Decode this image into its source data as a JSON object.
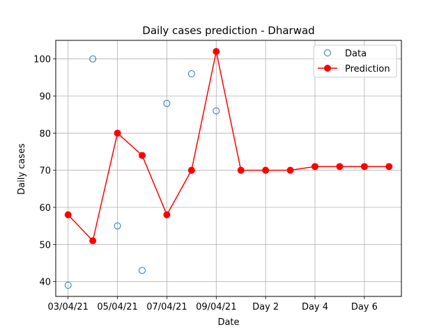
{
  "chart_data": {
    "type": "line",
    "title": "Daily cases prediction - Dharwad",
    "xlabel": "Date",
    "ylabel": "Daily cases",
    "x_index_range": [
      -0.5,
      13.5
    ],
    "ylim": [
      36,
      105
    ],
    "grid": true,
    "legend_placement": "top-right",
    "x_ticks": [
      {
        "index": 0,
        "label": "03/04/21"
      },
      {
        "index": 2,
        "label": "05/04/21"
      },
      {
        "index": 4,
        "label": "07/04/21"
      },
      {
        "index": 6,
        "label": "09/04/21"
      },
      {
        "index": 8,
        "label": "Day 2"
      },
      {
        "index": 10,
        "label": "Day 4"
      },
      {
        "index": 12,
        "label": "Day 6"
      }
    ],
    "y_ticks": [
      40,
      50,
      60,
      70,
      80,
      90,
      100
    ],
    "series": [
      {
        "name": "Data",
        "style": "markers",
        "color": "#1f77b4",
        "x": [
          0,
          1,
          2,
          3,
          4,
          5,
          6
        ],
        "values": [
          39,
          100,
          55,
          43,
          88,
          96,
          86
        ]
      },
      {
        "name": "Prediction",
        "style": "line-markers",
        "color": "#ff0000",
        "x": [
          0,
          1,
          2,
          3,
          4,
          5,
          6,
          7,
          8,
          9,
          10,
          11,
          12,
          13
        ],
        "values": [
          58,
          51,
          80,
          74,
          58,
          70,
          102,
          70,
          70,
          70,
          71,
          71,
          71,
          71
        ]
      }
    ]
  }
}
